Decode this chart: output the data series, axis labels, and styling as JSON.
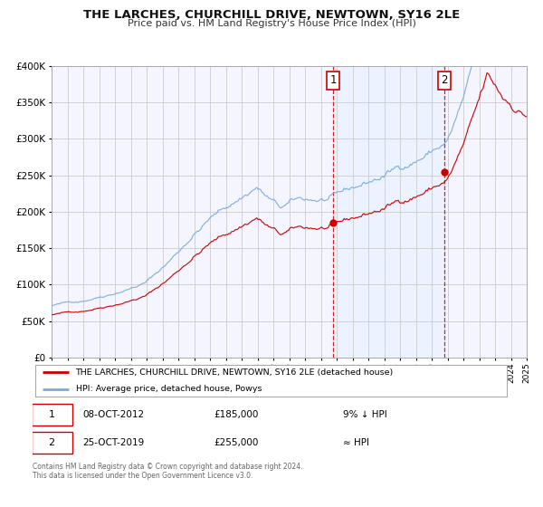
{
  "title": "THE LARCHES, CHURCHILL DRIVE, NEWTOWN, SY16 2LE",
  "subtitle": "Price paid vs. HM Land Registry's House Price Index (HPI)",
  "legend_label_red": "THE LARCHES, CHURCHILL DRIVE, NEWTOWN, SY16 2LE (detached house)",
  "legend_label_blue": "HPI: Average price, detached house, Powys",
  "sale1_date": "08-OCT-2012",
  "sale1_price": 185000,
  "sale1_note": "9% ↓ HPI",
  "sale2_date": "25-OCT-2019",
  "sale2_price": 255000,
  "sale2_note": "≈ HPI",
  "footer": "Contains HM Land Registry data © Crown copyright and database right 2024.\nThis data is licensed under the Open Government Licence v3.0.",
  "red_color": "#cc0000",
  "blue_color": "#7aaadd",
  "shade_color": "#ddeeff",
  "bg_color": "#ffffff",
  "grid_color": "#cccccc",
  "ylim": [
    0,
    400000
  ],
  "yticks": [
    0,
    50000,
    100000,
    150000,
    200000,
    250000,
    300000,
    350000,
    400000
  ],
  "year_start": 1995,
  "year_end": 2025,
  "sale1_year": 2012.77,
  "sale2_year": 2019.81
}
